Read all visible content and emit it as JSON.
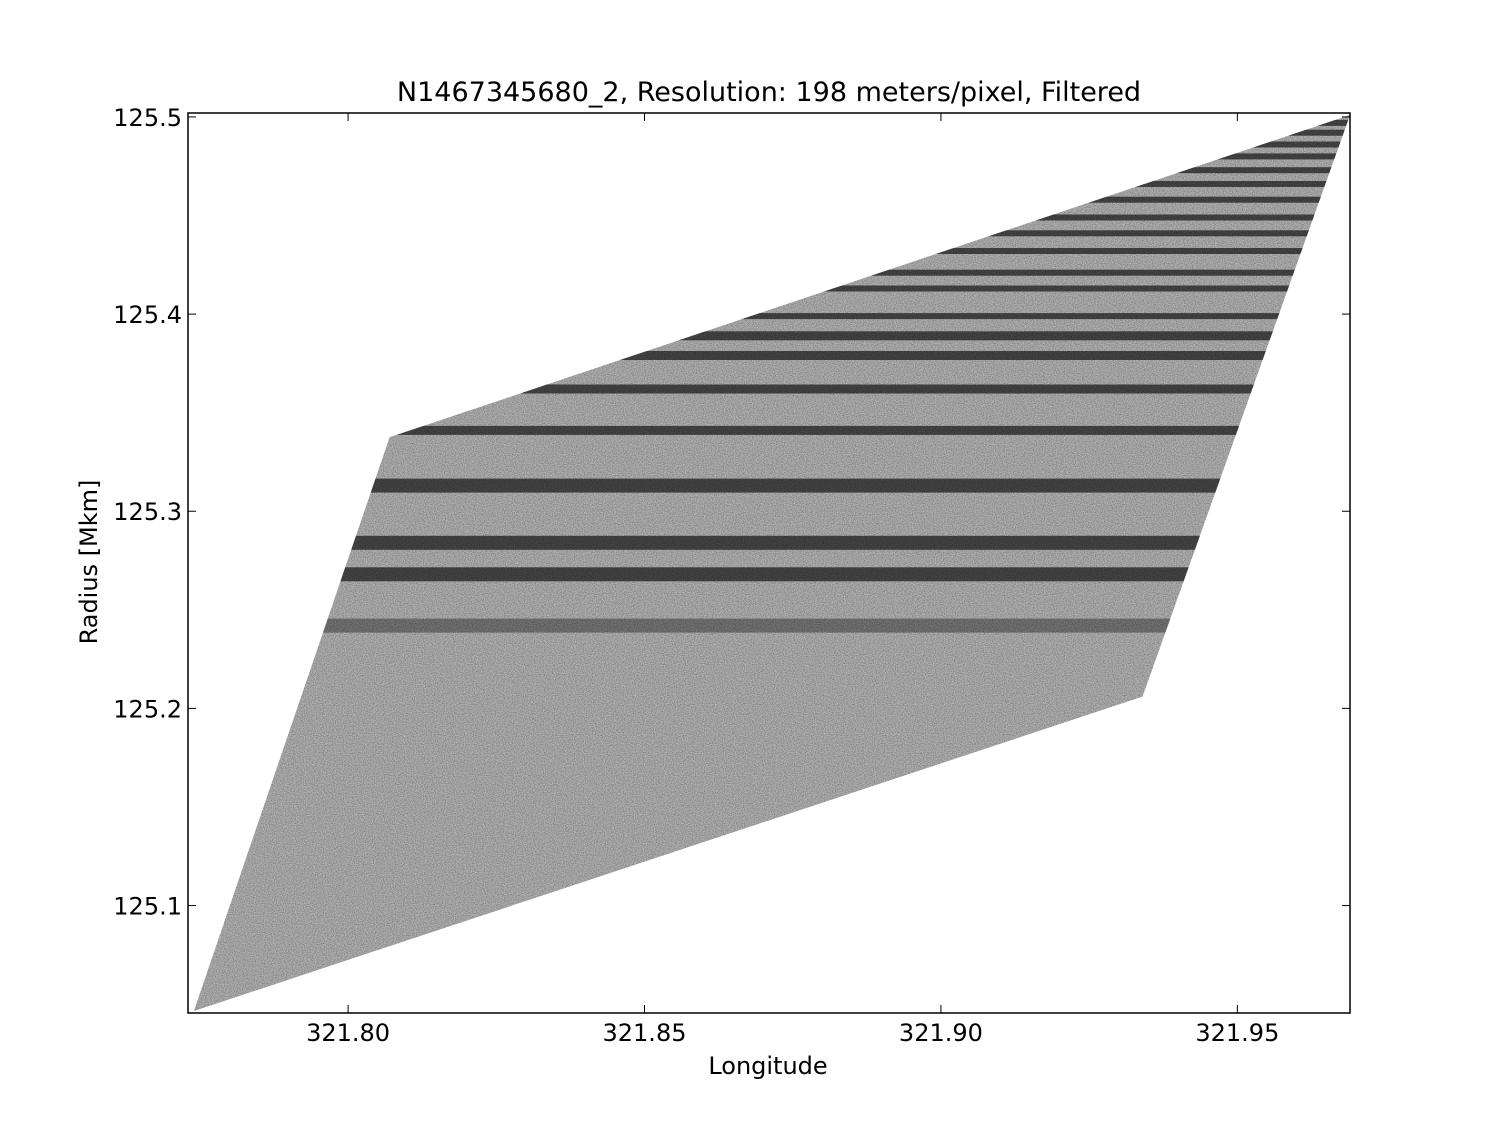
{
  "chart_data": {
    "type": "image",
    "title": "N1467345680_2, Resolution: 198 meters/pixel, Filtered",
    "xlabel": "Longitude",
    "ylabel": "Radius [Mkm]",
    "xlim": [
      321.773,
      321.969
    ],
    "ylim": [
      125.0455,
      125.502
    ],
    "x_ticks": [
      "321.80",
      "321.85",
      "321.90",
      "321.95"
    ],
    "x_tick_values": [
      321.8,
      321.85,
      321.9,
      321.95
    ],
    "y_ticks": [
      "125.1",
      "125.2",
      "125.3",
      "125.4",
      "125.5"
    ],
    "y_tick_values": [
      125.1,
      125.2,
      125.3,
      125.4,
      125.5
    ],
    "grid": false,
    "colormap": "grayscale",
    "data_region_vertices": [
      [
        321.774,
        125.0465
      ],
      [
        321.807,
        125.3375
      ],
      [
        321.969,
        125.501
      ],
      [
        321.934,
        125.206
      ]
    ],
    "dark_bands_radius": [
      125.242,
      125.268,
      125.284,
      125.313,
      125.341,
      125.362,
      125.379,
      125.389,
      125.399,
      125.413,
      125.421,
      125.432,
      125.441,
      125.449,
      125.458,
      125.466,
      125.473,
      125.48,
      125.486,
      125.492,
      125.497
    ]
  }
}
